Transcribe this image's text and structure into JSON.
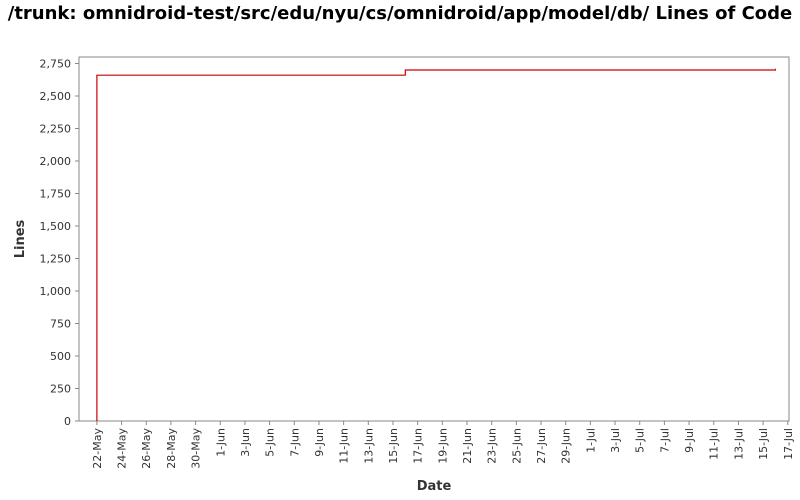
{
  "chart_data": {
    "type": "line",
    "title": "/trunk: omnidroid-test/src/edu/nyu/cs/omnidroid/app/model/db/ Lines of Code",
    "xlabel": "Date",
    "ylabel": "Lines",
    "ylim": [
      0,
      2800
    ],
    "yticks": [
      0,
      250,
      500,
      750,
      1000,
      1250,
      1500,
      1750,
      2000,
      2250,
      2500,
      2750
    ],
    "ytick_labels": [
      "0",
      "250",
      "500",
      "750",
      "1,000",
      "1,250",
      "1,500",
      "1,750",
      "2,000",
      "2,250",
      "2,500",
      "2,750"
    ],
    "xlim": [
      "2009-05-21",
      "2009-07-17"
    ],
    "xticks": [
      "2009-05-22",
      "2009-05-24",
      "2009-05-26",
      "2009-05-28",
      "2009-05-30",
      "2009-06-01",
      "2009-06-03",
      "2009-06-05",
      "2009-06-07",
      "2009-06-09",
      "2009-06-11",
      "2009-06-13",
      "2009-06-15",
      "2009-06-17",
      "2009-06-19",
      "2009-06-21",
      "2009-06-23",
      "2009-06-25",
      "2009-06-27",
      "2009-06-29",
      "2009-07-01",
      "2009-07-03",
      "2009-07-05",
      "2009-07-07",
      "2009-07-09",
      "2009-07-11",
      "2009-07-13",
      "2009-07-15",
      "2009-07-17"
    ],
    "xtick_labels": [
      "22-May",
      "24-May",
      "26-May",
      "28-May",
      "30-May",
      "1-Jun",
      "3-Jun",
      "5-Jun",
      "7-Jun",
      "9-Jun",
      "11-Jun",
      "13-Jun",
      "15-Jun",
      "17-Jun",
      "19-Jun",
      "21-Jun",
      "23-Jun",
      "25-Jun",
      "27-Jun",
      "29-Jun",
      "1-Jul",
      "3-Jul",
      "5-Jul",
      "7-Jul",
      "9-Jul",
      "11-Jul",
      "13-Jul",
      "15-Jul",
      "17-Jul"
    ],
    "grid": false,
    "step": true,
    "series": [
      {
        "color": "#cc0000",
        "x": [
          "2009-05-22",
          "2009-05-22",
          "2009-06-16",
          "2009-07-16",
          "2009-07-16"
        ],
        "y": [
          0,
          2660,
          2700,
          2700,
          2710
        ]
      }
    ]
  }
}
